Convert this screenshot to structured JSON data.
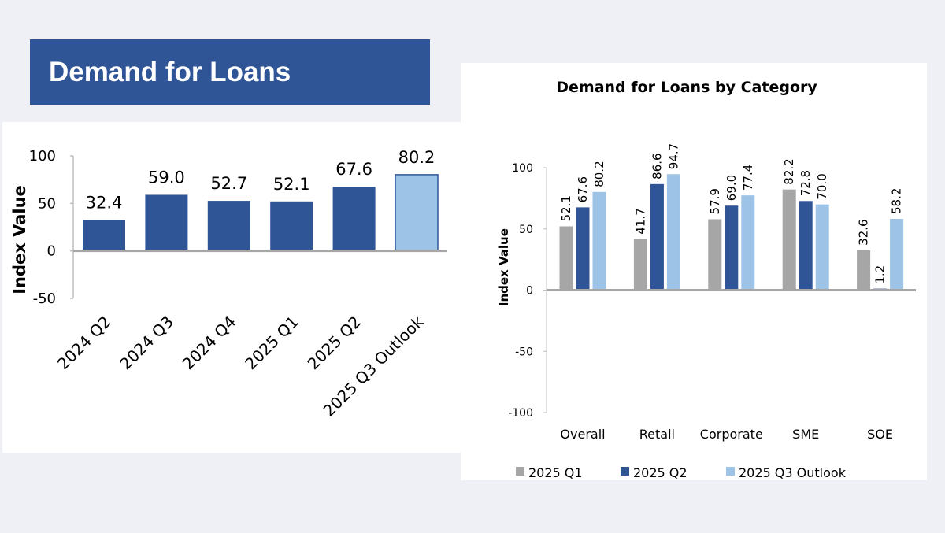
{
  "banner": {
    "title": "Demand for Loans"
  },
  "chart_data": [
    {
      "type": "bar",
      "title": "",
      "xlabel": "",
      "ylabel": "Index Value",
      "ylim": [
        -50,
        100
      ],
      "yticks": [
        "100",
        "50",
        "0",
        "-50"
      ],
      "categories": [
        "2024 Q2",
        "2024 Q3",
        "2024 Q4",
        "2025 Q1",
        "2025 Q2",
        "2025 Q3 Outlook"
      ],
      "values": [
        32.4,
        59.0,
        52.7,
        52.1,
        67.6,
        80.2
      ],
      "value_labels": [
        "32.4",
        "59.0",
        "52.7",
        "52.1",
        "67.6",
        "80.2"
      ],
      "colors": [
        "#2f5597",
        "#2f5597",
        "#2f5597",
        "#2f5597",
        "#2f5597",
        "#9dc3e6"
      ]
    },
    {
      "type": "bar",
      "title": "Demand for Loans by Category",
      "xlabel": "",
      "ylabel": "Index Value",
      "ylim": [
        -100,
        100
      ],
      "yticks": [
        "100",
        "50",
        "0",
        "-50",
        "-100"
      ],
      "categories": [
        "Overall",
        "Retail",
        "Corporate",
        "SME",
        "SOE"
      ],
      "legend_position": "bottom",
      "series": [
        {
          "name": "2025 Q1",
          "color": "#a6a6a6",
          "values": [
            52.1,
            41.7,
            57.9,
            82.2,
            32.6
          ],
          "labels": [
            "52.1",
            "41.7",
            "57.9",
            "82.2",
            "32.6"
          ]
        },
        {
          "name": "2025 Q2",
          "color": "#2f5597",
          "values": [
            67.6,
            86.6,
            69.0,
            72.8,
            1.2
          ],
          "labels": [
            "67.6",
            "86.6",
            "69.0",
            "72.8",
            "1.2"
          ]
        },
        {
          "name": "2025 Q3 Outlook",
          "color": "#9dc3e6",
          "values": [
            80.2,
            94.7,
            77.4,
            70.0,
            58.2
          ],
          "labels": [
            "80.2",
            "94.7",
            "77.4",
            "70.0",
            "58.2"
          ]
        }
      ]
    }
  ]
}
